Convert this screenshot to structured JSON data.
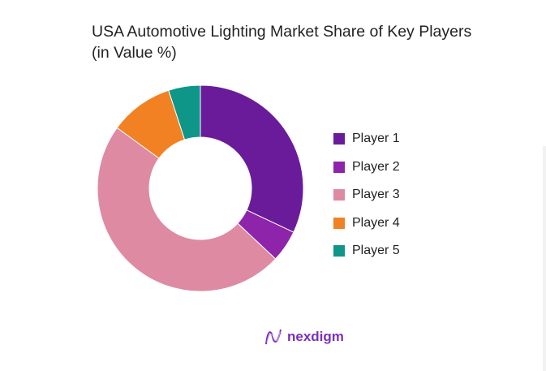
{
  "chart_data": {
    "type": "pie",
    "variant": "donut",
    "title": "USA Automotive Lighting Market Share of Key Players (in Value %)",
    "title_lines": [
      "USA Automotive Lighting Market Share of Key Players",
      "(in Value %)"
    ],
    "categories": [
      "Player 1",
      "Player 2",
      "Player 3",
      "Player 4",
      "Player 5"
    ],
    "values": [
      32,
      5,
      48,
      10,
      5
    ],
    "colors": [
      "#6a1b9a",
      "#8e24aa",
      "#de8aa2",
      "#f28123",
      "#0e9688"
    ],
    "legend": "right"
  },
  "brand": {
    "name": "nexdigm",
    "color": "#7b2fbe"
  }
}
